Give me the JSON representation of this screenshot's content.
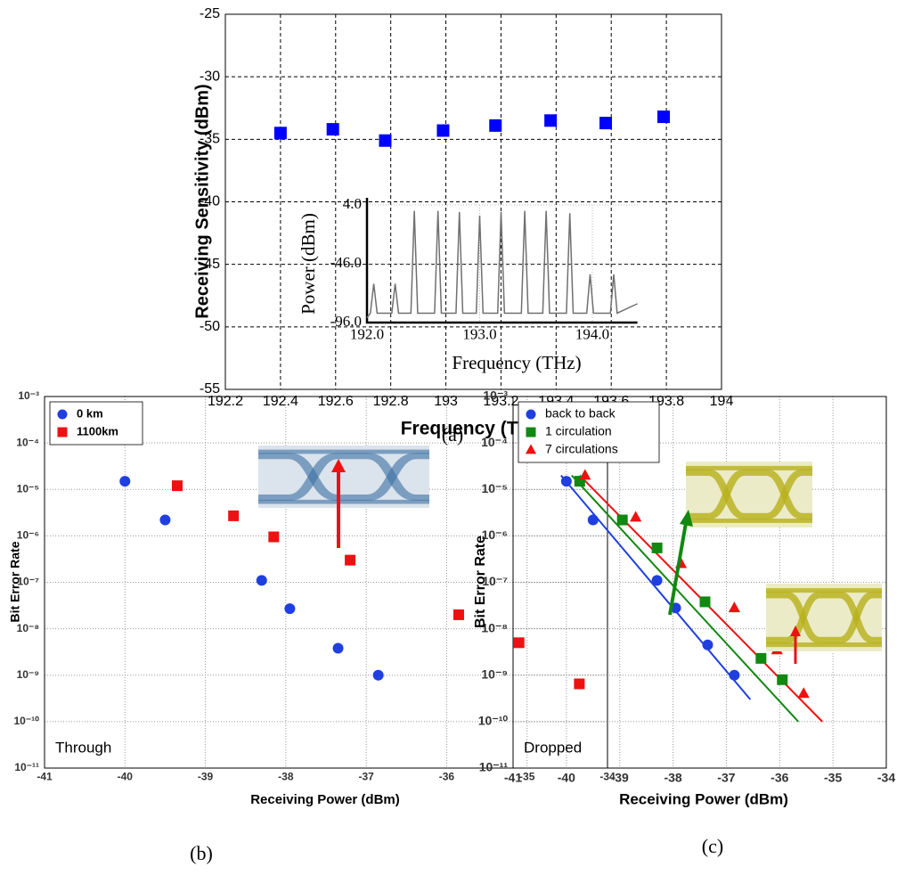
{
  "chart_data": [
    {
      "type": "scatter",
      "caption": "(a)",
      "x_label": "Frequency (THz)",
      "y_label": "Receiving Sensitivity (dBm)",
      "xlim": [
        192.2,
        194
      ],
      "ylim": [
        -55,
        -25
      ],
      "xticks": [
        192.2,
        192.4,
        192.6,
        192.8,
        193,
        193.2,
        193.4,
        193.6,
        193.8,
        194
      ],
      "yticks": [
        -25,
        -30,
        -35,
        -40,
        -45,
        -50,
        -55
      ],
      "grid": "dashed",
      "series": [
        {
          "color": "#0000ff",
          "marker": "square",
          "x": [
            192.4,
            192.59,
            192.78,
            192.99,
            193.18,
            193.38,
            193.58,
            193.79
          ],
          "values": [
            -34.5,
            -34.2,
            -35.1,
            -34.3,
            -33.9,
            -33.5,
            -33.7,
            -33.2
          ]
        }
      ]
    },
    {
      "type": "line",
      "x_label": "Frequency (THz)",
      "y_label": "Power (dBm)",
      "xlim": [
        192,
        194.4
      ],
      "ylim": [
        -96,
        4
      ],
      "xticks": [
        {
          "value": 192,
          "label": "192.0"
        },
        {
          "value": 193,
          "label": "193.0"
        },
        {
          "value": 194,
          "label": "194.0"
        }
      ],
      "yticks": [
        {
          "value": 4,
          "label": "4.0"
        },
        {
          "value": -46,
          "label": "-46.0"
        },
        {
          "value": -96,
          "label": "-96.0"
        }
      ],
      "grid": "dotted",
      "series": [
        {
          "color": "#707070",
          "x": [
            192.0,
            192.03,
            192.06,
            192.09,
            192.22,
            192.25,
            192.28,
            192.39,
            192.42,
            192.45,
            192.6,
            192.63,
            192.66,
            192.79,
            192.82,
            192.85,
            192.97,
            193.0,
            193.03,
            193.16,
            193.19,
            193.22,
            193.37,
            193.4,
            193.43,
            193.56,
            193.59,
            193.62,
            193.77,
            193.8,
            193.83,
            193.95,
            193.98,
            194.01,
            194.16,
            194.19,
            194.22,
            194.4
          ],
          "values": [
            -92,
            -88,
            -63,
            -88,
            -88,
            -63,
            -88,
            -88,
            -1,
            -88,
            -88,
            -1,
            -88,
            -88,
            -2,
            -88,
            -88,
            -5,
            -88,
            -88,
            -2,
            -88,
            -88,
            -1,
            -88,
            -88,
            -1,
            -88,
            -88,
            -3,
            -88,
            -88,
            -55,
            -88,
            -88,
            -55,
            -88,
            -80
          ]
        }
      ]
    },
    {
      "type": "scatter",
      "caption": "(b)",
      "annotation": "Through",
      "x_label": "Receiving Power (dBm)",
      "y_label": "Bit Error Rate",
      "log_y": true,
      "legend": "upper left",
      "grid": "dotted",
      "xlim": [
        -41,
        -34
      ],
      "ylim": [
        1e-11,
        0.001
      ],
      "xticks": [
        -41,
        -40,
        -39,
        -38,
        -37,
        -36,
        -35,
        -34
      ],
      "yticks": [
        {
          "value": 0.001,
          "label": "10⁻³"
        },
        {
          "value": 0.0001,
          "label": "10⁻⁴"
        },
        {
          "value": 1e-05,
          "label": "10⁻⁵"
        },
        {
          "value": 1e-06,
          "label": "10⁻⁶"
        },
        {
          "value": 1e-07,
          "label": "10⁻⁷"
        },
        {
          "value": 1e-08,
          "label": "10⁻⁸"
        },
        {
          "value": 1e-09,
          "label": "10⁻⁹"
        },
        {
          "value": 1e-10,
          "label": "10⁻¹⁰"
        },
        {
          "value": 1e-11,
          "label": "10⁻¹¹"
        }
      ],
      "series": [
        {
          "name": "0 km",
          "color": "#1f3fe0",
          "marker": "circle",
          "x": [
            -40,
            -39.5,
            -38.3,
            -37.95,
            -37.35,
            -36.85
          ],
          "values": [
            1.5e-05,
            2.2e-06,
            1.1e-07,
            2.7e-08,
            3.8e-09,
            1e-09
          ]
        },
        {
          "name": "1100km",
          "color": "#ee1111",
          "marker": "square",
          "x": [
            -39.35,
            -38.65,
            -38.15,
            -37.2,
            -35.85,
            -35.1,
            -34.35
          ],
          "values": [
            1.2e-05,
            2.7e-06,
            9.5e-07,
            3e-07,
            2e-08,
            5e-09,
            6.5e-10
          ]
        }
      ]
    },
    {
      "type": "scatter",
      "caption": "(c)",
      "annotation": "Dropped",
      "x_label": "Receiving Power (dBm)",
      "y_label": "Bit Error Rate",
      "log_y": true,
      "legend": "upper left",
      "grid": "dotted",
      "xlim": [
        -41,
        -34
      ],
      "ylim": [
        1e-11,
        0.001
      ],
      "xticks": [
        -41,
        -40,
        -39,
        -38,
        -37,
        -36,
        -35,
        -34
      ],
      "yticks": [
        {
          "value": 0.001,
          "label": "10⁻³"
        },
        {
          "value": 0.0001,
          "label": "10⁻⁴"
        },
        {
          "value": 1e-05,
          "label": "10⁻⁵"
        },
        {
          "value": 1e-06,
          "label": "10⁻⁶"
        },
        {
          "value": 1e-07,
          "label": "10⁻⁷"
        },
        {
          "value": 1e-08,
          "label": "10⁻⁸"
        },
        {
          "value": 1e-09,
          "label": "10⁻⁹"
        },
        {
          "value": 1e-10,
          "label": "10⁻¹⁰"
        },
        {
          "value": 1e-11,
          "label": "10⁻¹¹"
        }
      ],
      "series": [
        {
          "name": "back to back",
          "color": "#1f3fe0",
          "marker": "circle",
          "x": [
            -40,
            -39.5,
            -38.3,
            -37.95,
            -37.35,
            -36.85
          ],
          "values": [
            1.5e-05,
            2.2e-06,
            1.1e-07,
            2.8e-08,
            4.5e-09,
            1e-09
          ]
        },
        {
          "name": "1 circulation",
          "color": "#118811",
          "marker": "square",
          "x": [
            -39.75,
            -38.95,
            -38.3,
            -37.4,
            -36.35,
            -35.95
          ],
          "values": [
            1.5e-05,
            2.2e-06,
            5.5e-07,
            3.8e-08,
            2.3e-09,
            8e-10
          ]
        },
        {
          "name": "7 circulations",
          "color": "#ee1111",
          "marker": "triangle",
          "x": [
            -39.65,
            -38.7,
            -37.85,
            -36.85,
            -36.05,
            -35.55
          ],
          "values": [
            2e-05,
            2.5e-06,
            2.5e-07,
            2.8e-08,
            3.5e-09,
            4e-10
          ]
        }
      ],
      "fit_lines": [
        {
          "color": "#1f3fe0",
          "x": [
            -40.1,
            -36.55
          ],
          "values": [
            2e-05,
            3e-10
          ]
        },
        {
          "color": "#118811",
          "x": [
            -39.9,
            -35.65
          ],
          "values": [
            2e-05,
            1e-10
          ]
        },
        {
          "color": "#ee1111",
          "x": [
            -39.75,
            -35.2
          ],
          "values": [
            2e-05,
            1e-10
          ]
        }
      ]
    }
  ]
}
